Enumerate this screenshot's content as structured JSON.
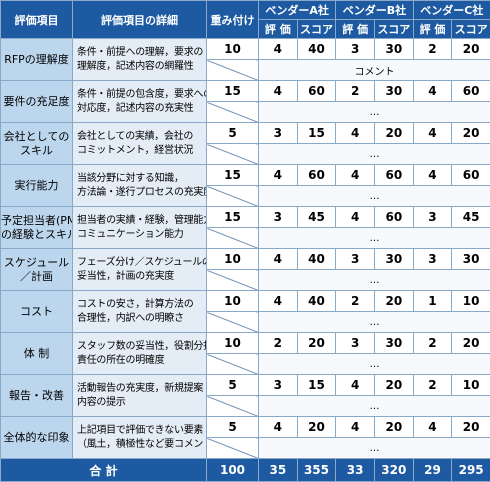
{
  "header": {
    "item": "評価項目",
    "detail": "評価項目の詳細",
    "weight": "重み付け",
    "vendors": [
      "ベンダーA社",
      "ベンダーB社",
      "ベンダーC社"
    ],
    "sub": [
      "評 価",
      "スコア"
    ]
  },
  "rows": [
    {
      "item": [
        "RFPの理解度"
      ],
      "detail": [
        "条件・前提への理解，要求の",
        "理解度，記述内容の網羅性"
      ],
      "weight": 10,
      "scores": [
        [
          4,
          40
        ],
        [
          3,
          30
        ],
        [
          2,
          20
        ]
      ],
      "comment": "コメント"
    },
    {
      "item": [
        "要件の充足度"
      ],
      "detail": [
        "条件・前提の包含度，要求への",
        "対応度，記述内容の充実性"
      ],
      "weight": 15,
      "scores": [
        [
          4,
          60
        ],
        [
          2,
          30
        ],
        [
          4,
          60
        ]
      ],
      "comment": "…"
    },
    {
      "item": [
        "会社としての",
        "スキル"
      ],
      "detail": [
        "会社としての実績，会社の",
        "コミットメント，経営状況"
      ],
      "weight": 5,
      "scores": [
        [
          3,
          15
        ],
        [
          4,
          20
        ],
        [
          4,
          20
        ]
      ],
      "comment": "…"
    },
    {
      "item": [
        "実行能力"
      ],
      "detail": [
        "当該分野に対する知識，",
        "方法論・遂行プロセスの充実度"
      ],
      "weight": 15,
      "scores": [
        [
          4,
          60
        ],
        [
          4,
          60
        ],
        [
          4,
          60
        ]
      ],
      "comment": "…"
    },
    {
      "item": [
        "予定担当者(PM)",
        "の経験とスキル"
      ],
      "detail": [
        "担当者の実績・経験，管理能力，",
        "コミュニケーション能力"
      ],
      "weight": 15,
      "scores": [
        [
          3,
          45
        ],
        [
          4,
          60
        ],
        [
          3,
          45
        ]
      ],
      "comment": "…"
    },
    {
      "item": [
        "スケジュール",
        "／計画"
      ],
      "detail": [
        "フェーズ分け／スケジュールの",
        "妥当性，計画の充実度"
      ],
      "weight": 10,
      "scores": [
        [
          4,
          40
        ],
        [
          3,
          30
        ],
        [
          3,
          30
        ]
      ],
      "comment": "…"
    },
    {
      "item": [
        "コスト"
      ],
      "detail": [
        "コストの安さ，計算方法の",
        "合理性，内訳への明瞭さ"
      ],
      "weight": 10,
      "scores": [
        [
          4,
          40
        ],
        [
          2,
          20
        ],
        [
          1,
          10
        ]
      ],
      "comment": "…"
    },
    {
      "item": [
        "体 制"
      ],
      "detail": [
        "スタッフ数の妥当性，役割分担，",
        "責任の所在の明確度"
      ],
      "weight": 10,
      "scores": [
        [
          2,
          20
        ],
        [
          3,
          30
        ],
        [
          2,
          20
        ]
      ],
      "comment": "…"
    },
    {
      "item": [
        "報告・改善"
      ],
      "detail": [
        "活動報告の充実度，新規提案",
        "内容の提示"
      ],
      "weight": 5,
      "scores": [
        [
          3,
          15
        ],
        [
          4,
          20
        ],
        [
          2,
          10
        ]
      ],
      "comment": "…"
    },
    {
      "item": [
        "全体的な印象"
      ],
      "detail": [
        "上記項目で評価できない要素",
        "（風土，積極性など要コメント）"
      ],
      "weight": 5,
      "scores": [
        [
          4,
          20
        ],
        [
          4,
          20
        ],
        [
          4,
          20
        ]
      ],
      "comment": "…"
    }
  ],
  "total": {
    "label": "合 計",
    "weight": 100,
    "scores": [
      [
        35,
        355
      ],
      [
        33,
        320
      ],
      [
        29,
        295
      ]
    ]
  }
}
